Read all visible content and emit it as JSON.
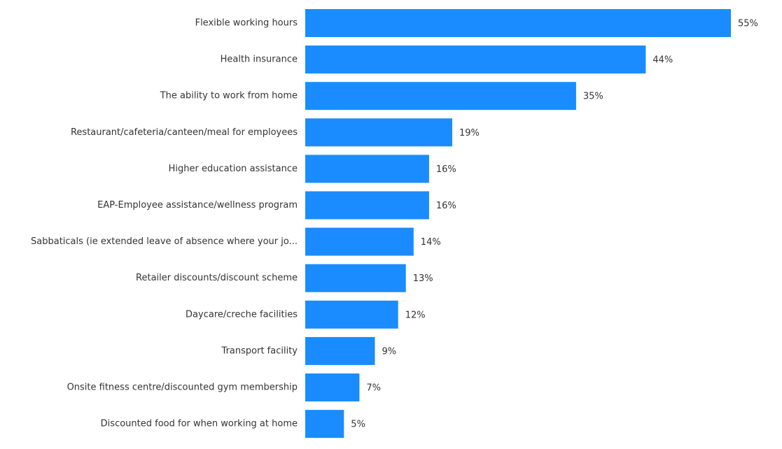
{
  "chart_data": {
    "type": "bar",
    "orientation": "horizontal",
    "categories": [
      "Flexible working hours",
      "Health insurance",
      "The ability to work from home",
      "Restaurant/cafeteria/canteen/meal for employees",
      "Higher education assistance",
      "EAP-Employee assistance/wellness program",
      "Sabbaticals (ie extended leave of absence where your jo...",
      "Retailer discounts/discount scheme",
      "Daycare/creche facilities",
      "Transport facility",
      "Onsite fitness centre/discounted gym membership",
      "Discounted food for when working at home"
    ],
    "values": [
      55,
      44,
      35,
      19,
      16,
      16,
      14,
      13,
      12,
      9,
      7,
      5
    ],
    "value_labels": [
      "55%",
      "44%",
      "35%",
      "19%",
      "16%",
      "16%",
      "14%",
      "13%",
      "12%",
      "9%",
      "7%",
      "5%"
    ],
    "xlim": [
      0,
      55
    ],
    "grid": false,
    "bar_color": "#1a8cff"
  }
}
